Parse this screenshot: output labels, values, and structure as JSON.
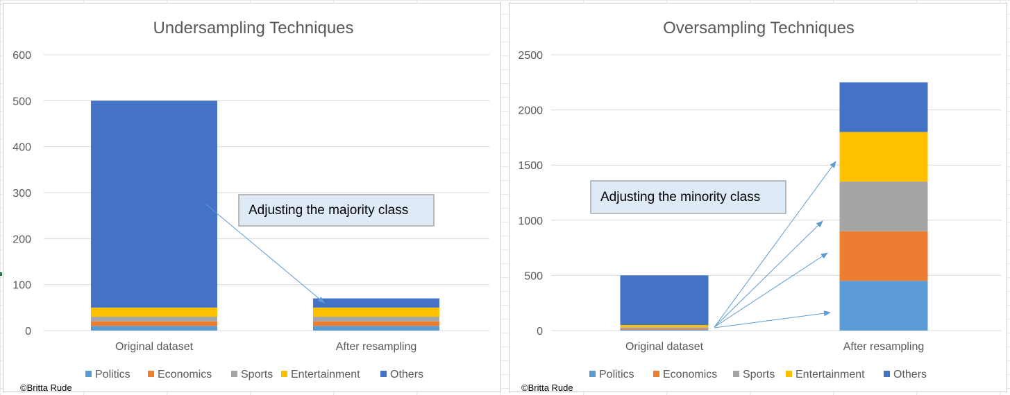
{
  "colors": {
    "Politics": "#5B9BD5",
    "Economics": "#ED7D31",
    "Sports": "#A5A5A5",
    "Entertainment": "#FFC000",
    "Others": "#4472C4",
    "grid": "#d9d9d9",
    "annotation_fill": "#DEEBF7",
    "annotation_border": "#A6A6A6",
    "arrow": "#5B9BD5"
  },
  "chart_data": [
    {
      "type": "bar",
      "stacked": true,
      "title": "Undersampling Techniques",
      "categories": [
        "Original dataset",
        "After resampling"
      ],
      "series": [
        {
          "name": "Politics",
          "values": [
            10,
            10
          ]
        },
        {
          "name": "Economics",
          "values": [
            10,
            10
          ]
        },
        {
          "name": "Sports",
          "values": [
            10,
            10
          ]
        },
        {
          "name": "Entertainment",
          "values": [
            20,
            20
          ]
        },
        {
          "name": "Others",
          "values": [
            450,
            20
          ]
        }
      ],
      "ylim": [
        0,
        600
      ],
      "yticks": [
        0,
        100,
        200,
        300,
        400,
        500,
        600
      ],
      "grid": true,
      "legend": "bottom",
      "annotation": "Adjusting the majority class",
      "credit": "©Britta Rude"
    },
    {
      "type": "bar",
      "stacked": true,
      "title": "Oversampling Techniques",
      "categories": [
        "Original dataset",
        "After resampling"
      ],
      "series": [
        {
          "name": "Politics",
          "values": [
            10,
            450
          ]
        },
        {
          "name": "Economics",
          "values": [
            10,
            450
          ]
        },
        {
          "name": "Sports",
          "values": [
            10,
            450
          ]
        },
        {
          "name": "Entertainment",
          "values": [
            20,
            450
          ]
        },
        {
          "name": "Others",
          "values": [
            450,
            450
          ]
        }
      ],
      "ylim": [
        0,
        2500
      ],
      "yticks": [
        0,
        500,
        1000,
        1500,
        2000,
        2500
      ],
      "grid": true,
      "legend": "bottom",
      "annotation": "Adjusting the minority class",
      "credit": "©Britta Rude"
    }
  ]
}
